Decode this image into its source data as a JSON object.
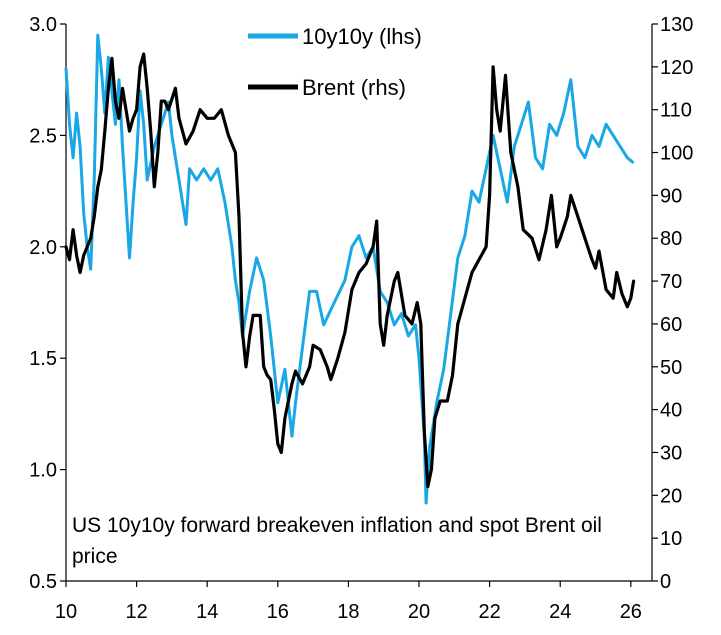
{
  "chart_data": {
    "type": "line",
    "caption": "US 10y10y forward breakeven inflation and spot Brent oil price",
    "x_ticks": [
      "10",
      "12",
      "14",
      "16",
      "18",
      "20",
      "22",
      "24",
      "26"
    ],
    "xlim": [
      2010,
      2026.6
    ],
    "y_left": {
      "label": "10y10y (lhs)",
      "ticks": [
        "0.5",
        "1.0",
        "1.5",
        "2.0",
        "2.5",
        "3.0"
      ],
      "ylim": [
        0.5,
        3.0
      ]
    },
    "y_right": {
      "label": "Brent (rhs)",
      "ticks": [
        "0",
        "10",
        "20",
        "30",
        "40",
        "50",
        "60",
        "70",
        "80",
        "90",
        "100",
        "110",
        "120",
        "130"
      ],
      "ylim": [
        0,
        130
      ]
    },
    "series": [
      {
        "name": "10y10y (lhs)",
        "axis": "left",
        "color": "#1aa7e6",
        "points": [
          [
            2010.0,
            2.8
          ],
          [
            2010.1,
            2.55
          ],
          [
            2010.2,
            2.4
          ],
          [
            2010.3,
            2.6
          ],
          [
            2010.4,
            2.45
          ],
          [
            2010.5,
            2.15
          ],
          [
            2010.6,
            2.0
          ],
          [
            2010.7,
            1.9
          ],
          [
            2010.8,
            2.3
          ],
          [
            2010.9,
            2.95
          ],
          [
            2011.0,
            2.8
          ],
          [
            2011.1,
            2.6
          ],
          [
            2011.2,
            2.85
          ],
          [
            2011.3,
            2.7
          ],
          [
            2011.4,
            2.55
          ],
          [
            2011.5,
            2.75
          ],
          [
            2011.6,
            2.45
          ],
          [
            2011.7,
            2.2
          ],
          [
            2011.8,
            1.95
          ],
          [
            2011.9,
            2.2
          ],
          [
            2012.0,
            2.4
          ],
          [
            2012.1,
            2.7
          ],
          [
            2012.2,
            2.55
          ],
          [
            2012.3,
            2.3
          ],
          [
            2012.5,
            2.45
          ],
          [
            2012.7,
            2.55
          ],
          [
            2012.9,
            2.65
          ],
          [
            2013.0,
            2.5
          ],
          [
            2013.2,
            2.3
          ],
          [
            2013.4,
            2.1
          ],
          [
            2013.5,
            2.35
          ],
          [
            2013.7,
            2.3
          ],
          [
            2013.9,
            2.35
          ],
          [
            2014.1,
            2.3
          ],
          [
            2014.3,
            2.35
          ],
          [
            2014.5,
            2.2
          ],
          [
            2014.7,
            2.0
          ],
          [
            2014.8,
            1.85
          ],
          [
            2014.9,
            1.75
          ],
          [
            2015.0,
            1.6
          ],
          [
            2015.2,
            1.8
          ],
          [
            2015.4,
            1.95
          ],
          [
            2015.6,
            1.85
          ],
          [
            2015.8,
            1.6
          ],
          [
            2016.0,
            1.3
          ],
          [
            2016.2,
            1.45
          ],
          [
            2016.4,
            1.15
          ],
          [
            2016.5,
            1.3
          ],
          [
            2016.7,
            1.55
          ],
          [
            2016.9,
            1.8
          ],
          [
            2017.1,
            1.8
          ],
          [
            2017.3,
            1.65
          ],
          [
            2017.6,
            1.75
          ],
          [
            2017.9,
            1.85
          ],
          [
            2018.1,
            2.0
          ],
          [
            2018.3,
            2.05
          ],
          [
            2018.5,
            1.95
          ],
          [
            2018.7,
            2.0
          ],
          [
            2018.9,
            1.8
          ],
          [
            2019.1,
            1.75
          ],
          [
            2019.3,
            1.65
          ],
          [
            2019.5,
            1.7
          ],
          [
            2019.7,
            1.6
          ],
          [
            2019.9,
            1.65
          ],
          [
            2020.0,
            1.5
          ],
          [
            2020.15,
            1.15
          ],
          [
            2020.2,
            0.85
          ],
          [
            2020.3,
            1.1
          ],
          [
            2020.5,
            1.3
          ],
          [
            2020.7,
            1.45
          ],
          [
            2020.9,
            1.7
          ],
          [
            2021.1,
            1.95
          ],
          [
            2021.3,
            2.05
          ],
          [
            2021.5,
            2.25
          ],
          [
            2021.7,
            2.2
          ],
          [
            2021.9,
            2.35
          ],
          [
            2022.1,
            2.5
          ],
          [
            2022.3,
            2.35
          ],
          [
            2022.5,
            2.2
          ],
          [
            2022.7,
            2.45
          ],
          [
            2022.9,
            2.55
          ],
          [
            2023.1,
            2.65
          ],
          [
            2023.3,
            2.4
          ],
          [
            2023.5,
            2.35
          ],
          [
            2023.7,
            2.55
          ],
          [
            2023.9,
            2.5
          ],
          [
            2024.1,
            2.6
          ],
          [
            2024.3,
            2.75
          ],
          [
            2024.5,
            2.45
          ],
          [
            2024.7,
            2.4
          ],
          [
            2024.9,
            2.5
          ],
          [
            2025.1,
            2.45
          ],
          [
            2025.3,
            2.55
          ],
          [
            2025.5,
            2.5
          ],
          [
            2025.7,
            2.45
          ],
          [
            2025.9,
            2.4
          ],
          [
            2026.05,
            2.38
          ]
        ]
      },
      {
        "name": "Brent (rhs)",
        "axis": "right",
        "color": "#000000",
        "points": [
          [
            2010.0,
            78
          ],
          [
            2010.1,
            75
          ],
          [
            2010.2,
            82
          ],
          [
            2010.3,
            76
          ],
          [
            2010.4,
            72
          ],
          [
            2010.5,
            76
          ],
          [
            2010.6,
            78
          ],
          [
            2010.7,
            80
          ],
          [
            2010.8,
            85
          ],
          [
            2010.9,
            92
          ],
          [
            2011.0,
            96
          ],
          [
            2011.1,
            105
          ],
          [
            2011.2,
            115
          ],
          [
            2011.3,
            122
          ],
          [
            2011.4,
            112
          ],
          [
            2011.5,
            108
          ],
          [
            2011.6,
            115
          ],
          [
            2011.7,
            110
          ],
          [
            2011.8,
            105
          ],
          [
            2011.9,
            108
          ],
          [
            2012.0,
            110
          ],
          [
            2012.1,
            120
          ],
          [
            2012.2,
            123
          ],
          [
            2012.3,
            115
          ],
          [
            2012.4,
            105
          ],
          [
            2012.5,
            92
          ],
          [
            2012.6,
            100
          ],
          [
            2012.7,
            112
          ],
          [
            2012.8,
            112
          ],
          [
            2012.9,
            110
          ],
          [
            2013.1,
            115
          ],
          [
            2013.2,
            108
          ],
          [
            2013.4,
            102
          ],
          [
            2013.6,
            105
          ],
          [
            2013.8,
            110
          ],
          [
            2014.0,
            108
          ],
          [
            2014.2,
            108
          ],
          [
            2014.4,
            110
          ],
          [
            2014.6,
            104
          ],
          [
            2014.8,
            100
          ],
          [
            2014.9,
            85
          ],
          [
            2015.0,
            58
          ],
          [
            2015.1,
            50
          ],
          [
            2015.2,
            57
          ],
          [
            2015.3,
            62
          ],
          [
            2015.5,
            62
          ],
          [
            2015.6,
            50
          ],
          [
            2015.7,
            48
          ],
          [
            2015.8,
            47
          ],
          [
            2015.9,
            40
          ],
          [
            2016.0,
            32
          ],
          [
            2016.1,
            30
          ],
          [
            2016.2,
            38
          ],
          [
            2016.4,
            46
          ],
          [
            2016.5,
            49
          ],
          [
            2016.7,
            46
          ],
          [
            2016.9,
            50
          ],
          [
            2017.0,
            55
          ],
          [
            2017.2,
            54
          ],
          [
            2017.4,
            50
          ],
          [
            2017.5,
            47
          ],
          [
            2017.7,
            52
          ],
          [
            2017.9,
            58
          ],
          [
            2018.1,
            68
          ],
          [
            2018.3,
            72
          ],
          [
            2018.5,
            74
          ],
          [
            2018.7,
            78
          ],
          [
            2018.8,
            84
          ],
          [
            2018.9,
            60
          ],
          [
            2019.0,
            55
          ],
          [
            2019.1,
            62
          ],
          [
            2019.3,
            70
          ],
          [
            2019.4,
            72
          ],
          [
            2019.6,
            62
          ],
          [
            2019.8,
            60
          ],
          [
            2019.95,
            65
          ],
          [
            2020.05,
            60
          ],
          [
            2020.15,
            35
          ],
          [
            2020.25,
            22
          ],
          [
            2020.35,
            26
          ],
          [
            2020.45,
            38
          ],
          [
            2020.6,
            42
          ],
          [
            2020.8,
            42
          ],
          [
            2020.95,
            48
          ],
          [
            2021.1,
            60
          ],
          [
            2021.3,
            66
          ],
          [
            2021.5,
            72
          ],
          [
            2021.7,
            75
          ],
          [
            2021.9,
            78
          ],
          [
            2022.0,
            90
          ],
          [
            2022.1,
            120
          ],
          [
            2022.2,
            110
          ],
          [
            2022.3,
            105
          ],
          [
            2022.45,
            118
          ],
          [
            2022.6,
            100
          ],
          [
            2022.8,
            92
          ],
          [
            2022.95,
            82
          ],
          [
            2023.2,
            80
          ],
          [
            2023.4,
            75
          ],
          [
            2023.6,
            82
          ],
          [
            2023.75,
            90
          ],
          [
            2023.9,
            78
          ],
          [
            2024.0,
            80
          ],
          [
            2024.2,
            85
          ],
          [
            2024.3,
            90
          ],
          [
            2024.5,
            85
          ],
          [
            2024.7,
            80
          ],
          [
            2024.9,
            75
          ],
          [
            2025.0,
            73
          ],
          [
            2025.1,
            77
          ],
          [
            2025.3,
            68
          ],
          [
            2025.5,
            66
          ],
          [
            2025.6,
            72
          ],
          [
            2025.75,
            67
          ],
          [
            2025.9,
            64
          ],
          [
            2026.0,
            66
          ],
          [
            2026.08,
            70
          ]
        ]
      }
    ]
  }
}
